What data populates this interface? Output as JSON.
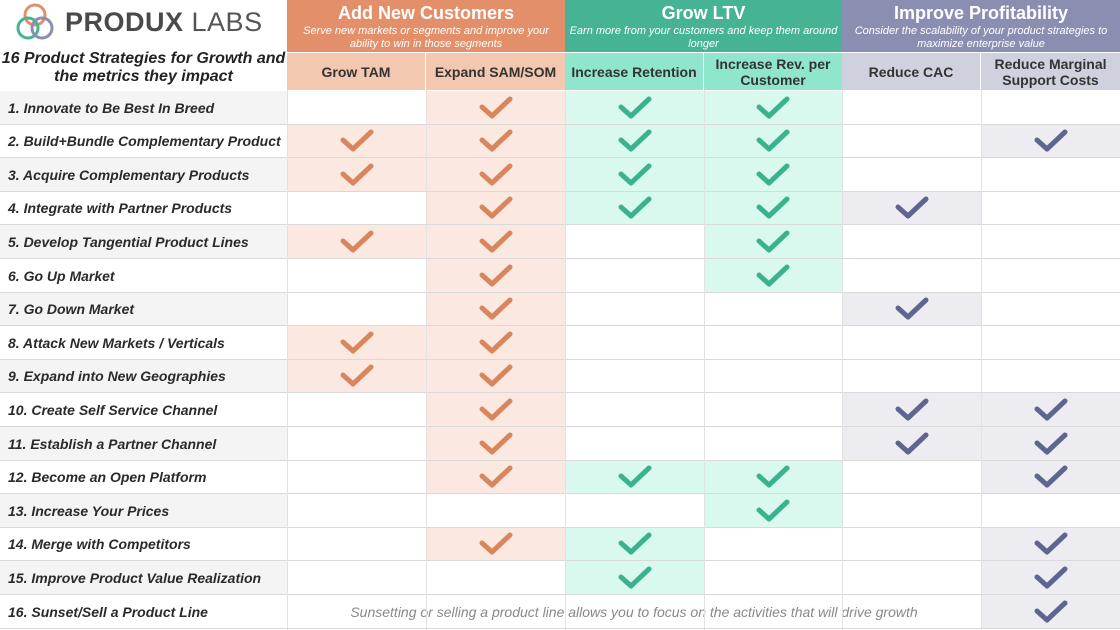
{
  "logo": {
    "brand_bold": "PRODUX",
    "brand_light": "LABS"
  },
  "title": "16 Product Strategies for Growth and the metrics they impact",
  "groups": [
    {
      "title": "Add New Customers",
      "description": "Serve new markets or segments and improve your ability to win in those segments",
      "color": "#e3906a"
    },
    {
      "title": "Grow LTV",
      "description": "Earn more from your customers and keep them around longer",
      "color": "#45b394"
    },
    {
      "title": "Improve Profitability",
      "description": "Consider the scalability of your product strategies to maximize enterprise value",
      "color": "#8a8fb2"
    }
  ],
  "columns": [
    "Grow TAM",
    "Expand SAM/SOM",
    "Increase Retention",
    "Increase Rev. per Customer",
    "Reduce CAC",
    "Reduce Marginal Support Costs"
  ],
  "colors": {
    "orange_check": "#d9855d",
    "orange_fill": "#fbe9e1",
    "green_check": "#3bb28f",
    "green_fill": "#d9f9ef",
    "blue_check": "#5d6590",
    "blue_fill": "#ececf1",
    "row_alt": "#f4f4f4"
  },
  "rows": [
    {
      "label": "1. Innovate to Be Best In Breed",
      "checks": [
        0,
        1,
        1,
        1,
        0,
        0
      ]
    },
    {
      "label": "2. Build+Bundle Complementary Product",
      "checks": [
        1,
        1,
        1,
        1,
        0,
        1
      ]
    },
    {
      "label": "3. Acquire Complementary Products",
      "checks": [
        1,
        1,
        1,
        1,
        0,
        0
      ]
    },
    {
      "label": "4. Integrate with Partner Products",
      "checks": [
        0,
        1,
        1,
        1,
        1,
        0
      ]
    },
    {
      "label": "5. Develop Tangential Product Lines",
      "checks": [
        1,
        1,
        0,
        1,
        0,
        0
      ]
    },
    {
      "label": "6. Go Up Market",
      "checks": [
        0,
        1,
        0,
        1,
        0,
        0
      ]
    },
    {
      "label": "7. Go Down Market",
      "checks": [
        0,
        1,
        0,
        0,
        1,
        0
      ]
    },
    {
      "label": "8. Attack New Markets / Verticals",
      "checks": [
        1,
        1,
        0,
        0,
        0,
        0
      ]
    },
    {
      "label": "9. Expand into New Geographies",
      "checks": [
        1,
        1,
        0,
        0,
        0,
        0
      ]
    },
    {
      "label": "10. Create Self Service Channel",
      "checks": [
        0,
        1,
        0,
        0,
        1,
        1
      ]
    },
    {
      "label": "11. Establish a Partner Channel",
      "checks": [
        0,
        1,
        0,
        0,
        1,
        1
      ]
    },
    {
      "label": "12. Become an Open Platform",
      "checks": [
        0,
        1,
        1,
        1,
        0,
        1
      ]
    },
    {
      "label": "13. Increase Your Prices",
      "checks": [
        0,
        0,
        0,
        1,
        0,
        0
      ]
    },
    {
      "label": "14. Merge with Competitors",
      "checks": [
        0,
        1,
        1,
        0,
        0,
        1
      ]
    },
    {
      "label": "15. Improve Product Value Realization",
      "checks": [
        0,
        0,
        1,
        0,
        0,
        1
      ]
    },
    {
      "label": "16. Sunset/Sell a Product Line",
      "checks": [
        0,
        0,
        0,
        0,
        0,
        1
      ],
      "note": "Sunsetting or selling a product line allows you to focus on the activities that will drive growth"
    }
  ]
}
